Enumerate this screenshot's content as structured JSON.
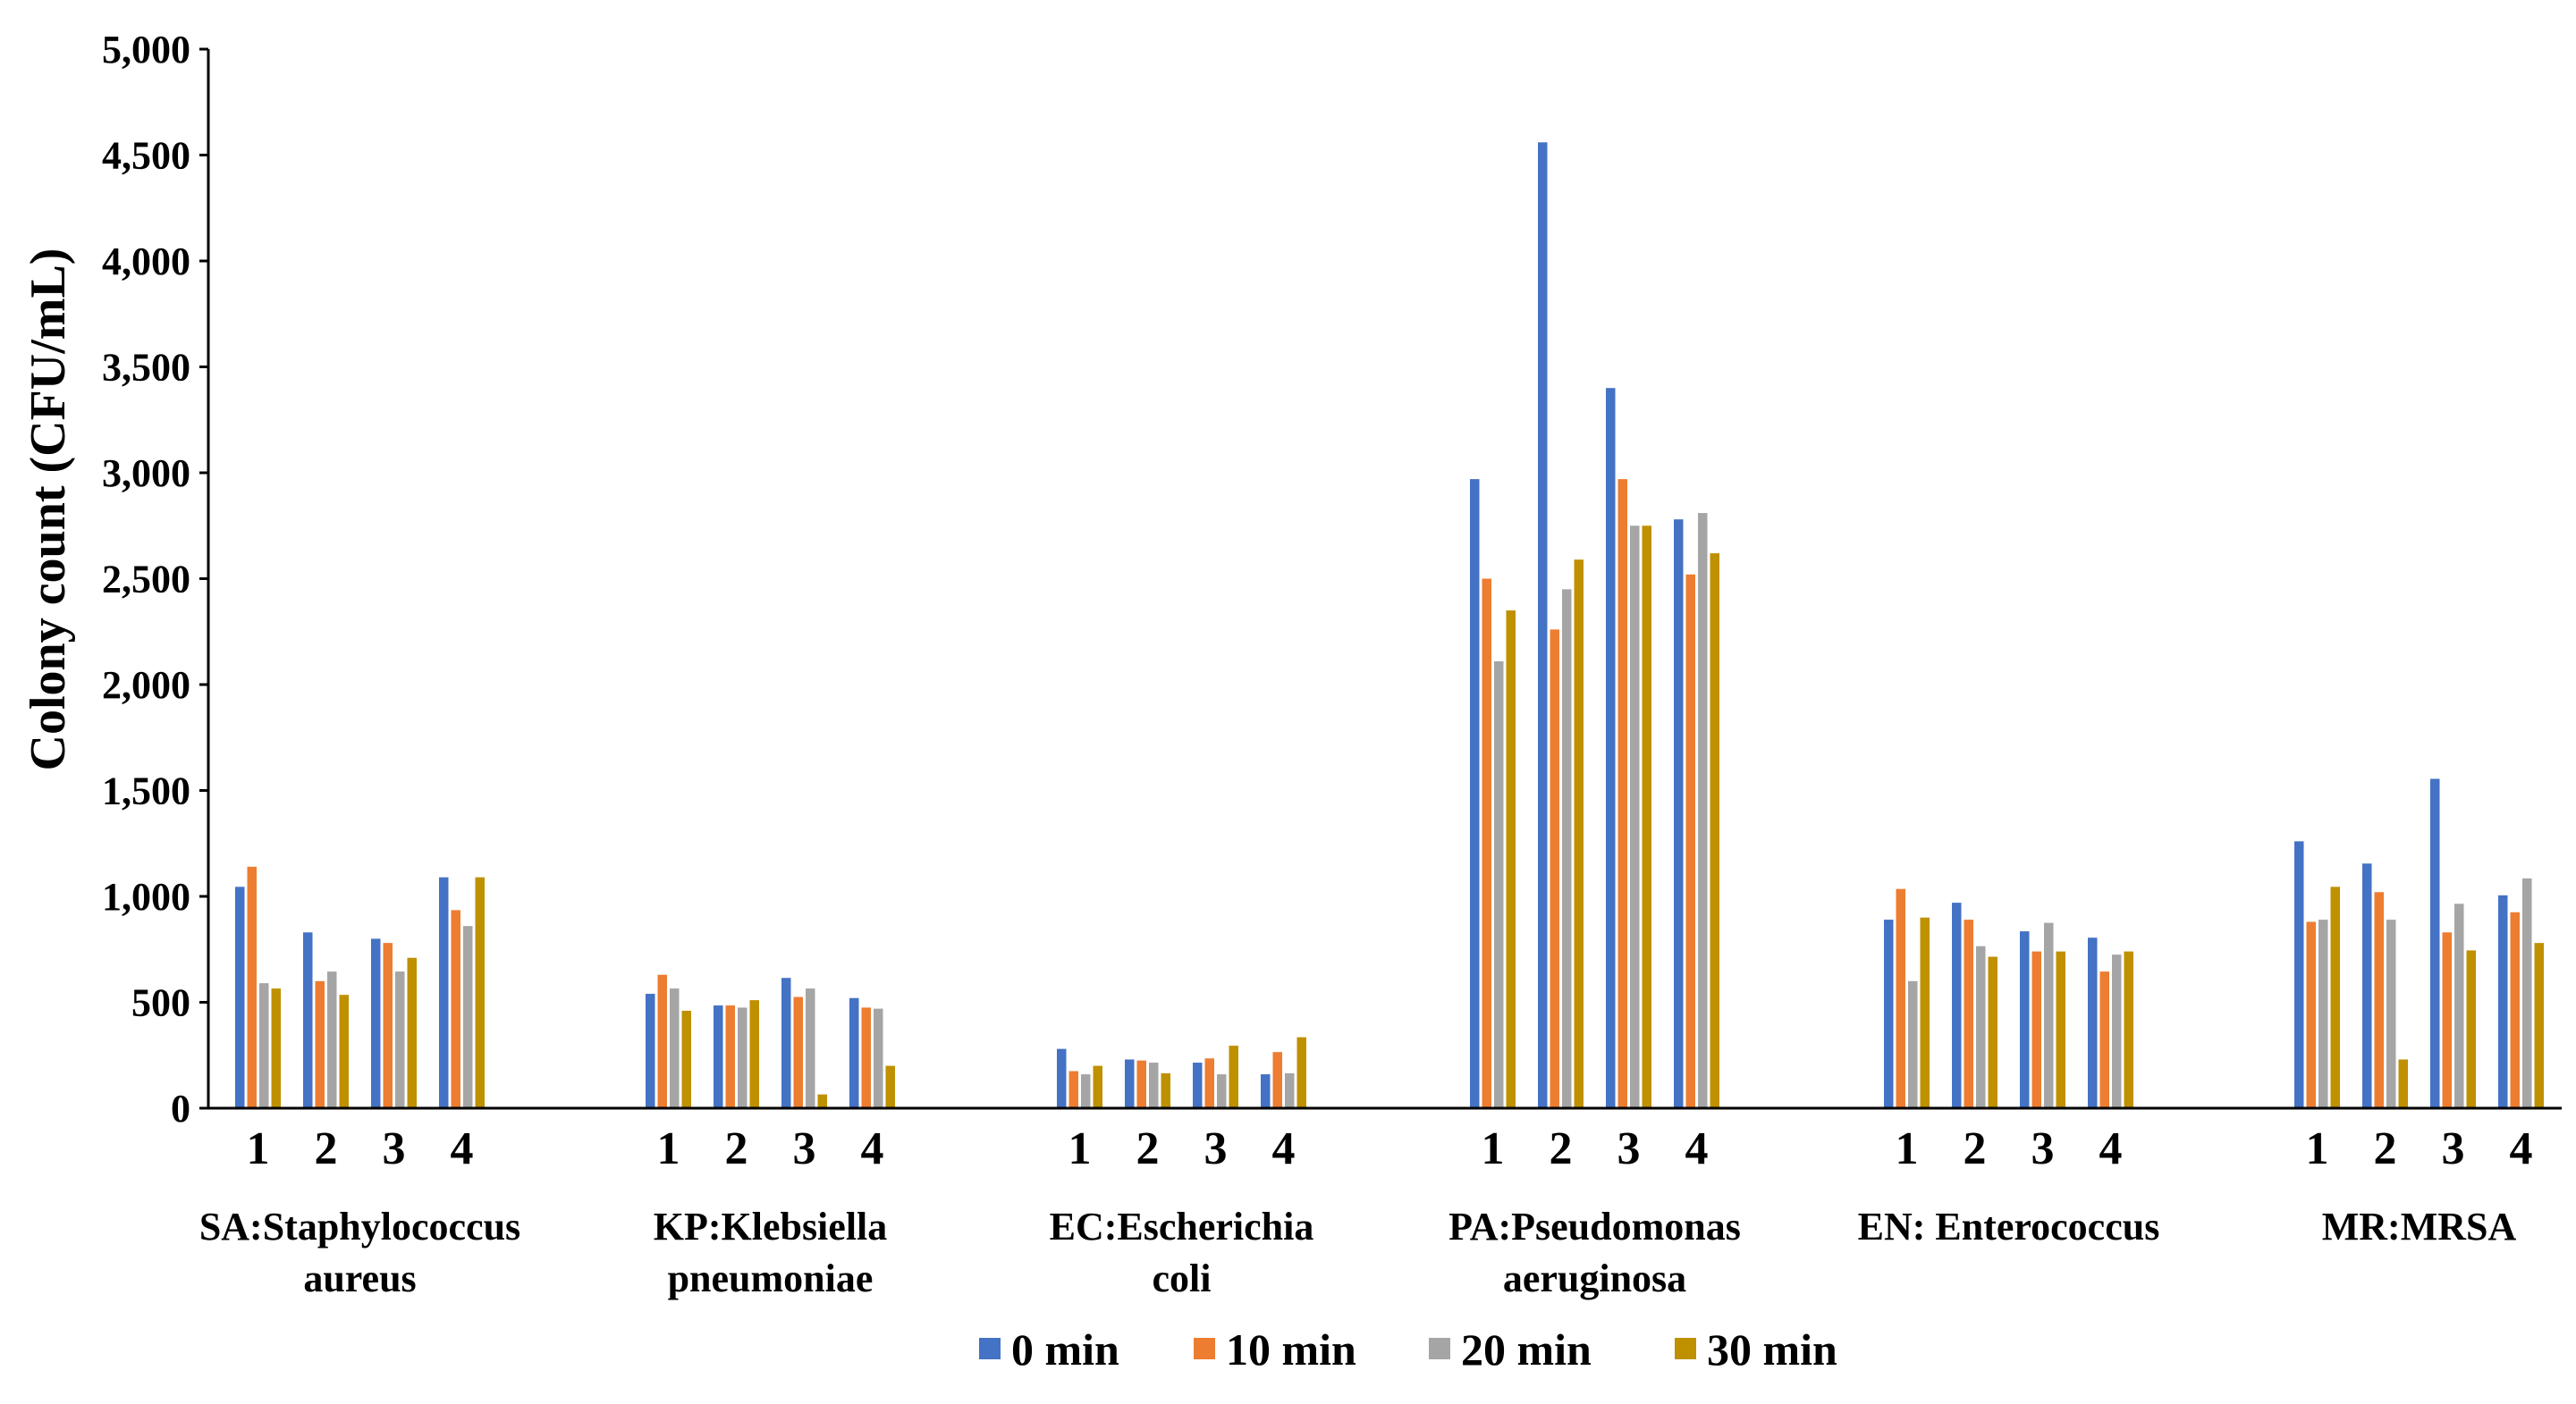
{
  "chart_data": {
    "type": "bar",
    "title": "",
    "ylabel": "Colony count (CFU/mL)",
    "xlabel": "",
    "ylim": [
      0,
      5000
    ],
    "yticks": [
      "0",
      "500",
      "1,000",
      "1,500",
      "2,000",
      "2,500",
      "3,000",
      "3,500",
      "4,000",
      "4,500",
      "5,000"
    ],
    "grid": false,
    "legend_position": "bottom",
    "sample_labels": [
      "1",
      "2",
      "3",
      "4"
    ],
    "series": [
      {
        "name": "0 min",
        "color": "#4472C4"
      },
      {
        "name": "10 min",
        "color": "#ED7D31"
      },
      {
        "name": "20 min",
        "color": "#A5A5A5"
      },
      {
        "name": "30 min",
        "color": "#BF9000"
      }
    ],
    "groups": [
      {
        "label_lines": [
          "SA:Staphylococcus",
          "aureus"
        ],
        "samples": [
          [
            1045,
            1140,
            590,
            565
          ],
          [
            830,
            600,
            645,
            535
          ],
          [
            800,
            780,
            645,
            710
          ],
          [
            1090,
            935,
            860,
            1090
          ]
        ]
      },
      {
        "label_lines": [
          "KP:Klebsiella",
          "pneumoniae"
        ],
        "samples": [
          [
            540,
            630,
            565,
            460
          ],
          [
            485,
            485,
            475,
            510
          ],
          [
            615,
            525,
            565,
            65
          ],
          [
            520,
            475,
            470,
            200
          ]
        ]
      },
      {
        "label_lines": [
          "EC:Escherichia",
          "coli"
        ],
        "samples": [
          [
            280,
            175,
            160,
            200
          ],
          [
            230,
            225,
            215,
            165
          ],
          [
            215,
            235,
            160,
            295
          ],
          [
            160,
            265,
            165,
            335
          ]
        ]
      },
      {
        "label_lines": [
          "PA:Pseudomonas",
          "aeruginosa"
        ],
        "samples": [
          [
            2970,
            2500,
            2110,
            2350
          ],
          [
            4560,
            2260,
            2450,
            2590
          ],
          [
            3400,
            2970,
            2750,
            2750
          ],
          [
            2780,
            2520,
            2810,
            2620
          ]
        ]
      },
      {
        "label_lines": [
          "EN: Enterococcus"
        ],
        "samples": [
          [
            890,
            1035,
            600,
            900
          ],
          [
            970,
            890,
            765,
            715
          ],
          [
            835,
            740,
            875,
            740
          ],
          [
            805,
            645,
            725,
            740
          ]
        ]
      },
      {
        "label_lines": [
          "MR:MRSA"
        ],
        "samples": [
          [
            1260,
            880,
            890,
            1045
          ],
          [
            1155,
            1020,
            890,
            230
          ],
          [
            1555,
            830,
            965,
            745
          ],
          [
            1005,
            925,
            1085,
            780
          ]
        ]
      }
    ]
  }
}
